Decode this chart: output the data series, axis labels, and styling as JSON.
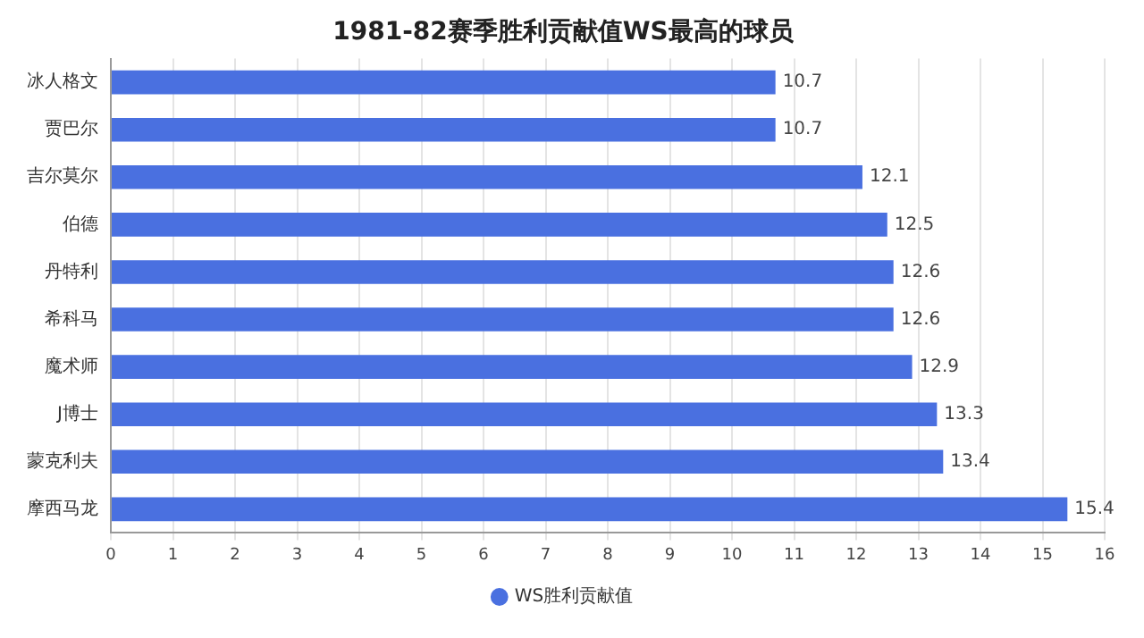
{
  "chart_data": {
    "type": "bar",
    "orientation": "horizontal",
    "title": "1981-82赛季胜利贡献值WS最高的球员",
    "categories": [
      "冰人格文",
      "贾巴尔",
      "吉尔莫尔",
      "伯德",
      "丹特利",
      "希科马",
      "魔术师",
      "J博士",
      "蒙克利夫",
      "摩西马龙"
    ],
    "series": [
      {
        "name": "WS胜利贡献值",
        "color": "#4a70e0",
        "values": [
          10.7,
          10.7,
          12.1,
          12.5,
          12.6,
          12.6,
          12.9,
          13.3,
          13.4,
          15.4
        ]
      }
    ],
    "xlim": [
      0,
      16
    ],
    "xticks": [
      0,
      1,
      2,
      3,
      4,
      5,
      6,
      7,
      8,
      9,
      10,
      11,
      12,
      13,
      14,
      15,
      16
    ],
    "grid": "x",
    "legend": "bottom",
    "data_labels": true
  }
}
